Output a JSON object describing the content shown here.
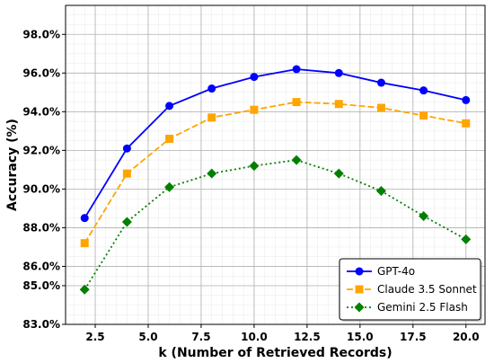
{
  "chart_data": {
    "type": "line",
    "xlabel": "k (Number of Retrieved Records)",
    "ylabel": "Accuracy (%)",
    "xlim": [
      1.1,
      20.9
    ],
    "ylim": [
      83.0,
      99.5
    ],
    "x_ticks": [
      2.5,
      5.0,
      7.5,
      10.0,
      12.5,
      15.0,
      17.5,
      20.0
    ],
    "x_tick_labels": [
      "2.5",
      "5.0",
      "7.5",
      "10.0",
      "12.5",
      "15.0",
      "17.5",
      "20.0"
    ],
    "y_ticks": [
      83.0,
      85.0,
      86.0,
      88.0,
      90.0,
      92.0,
      94.0,
      96.0,
      98.0
    ],
    "y_tick_labels": [
      "83.0%",
      "85.0%",
      "86.0%",
      "88.0%",
      "90.0%",
      "92.0%",
      "94.0%",
      "96.0%",
      "98.0%"
    ],
    "grid": true,
    "legend_position": "bottom-right",
    "x": [
      2,
      4,
      6,
      8,
      10,
      12,
      14,
      16,
      18,
      20
    ],
    "series": [
      {
        "name": "GPT-4o",
        "color": "#0000ff",
        "marker": "circle",
        "linestyle": "solid",
        "values": [
          88.5,
          92.1,
          94.3,
          95.2,
          95.8,
          96.2,
          96.0,
          95.5,
          95.1,
          94.6
        ]
      },
      {
        "name": "Claude 3.5 Sonnet",
        "color": "#ffa500",
        "marker": "square",
        "linestyle": "dashed",
        "values": [
          87.2,
          90.8,
          92.6,
          93.7,
          94.1,
          94.5,
          94.4,
          94.2,
          93.8,
          93.4
        ]
      },
      {
        "name": "Gemini 2.5 Flash",
        "color": "#008000",
        "marker": "diamond",
        "linestyle": "dotted",
        "values": [
          84.8,
          88.3,
          90.1,
          90.8,
          91.2,
          91.5,
          90.8,
          89.9,
          88.6,
          87.4
        ]
      }
    ]
  }
}
